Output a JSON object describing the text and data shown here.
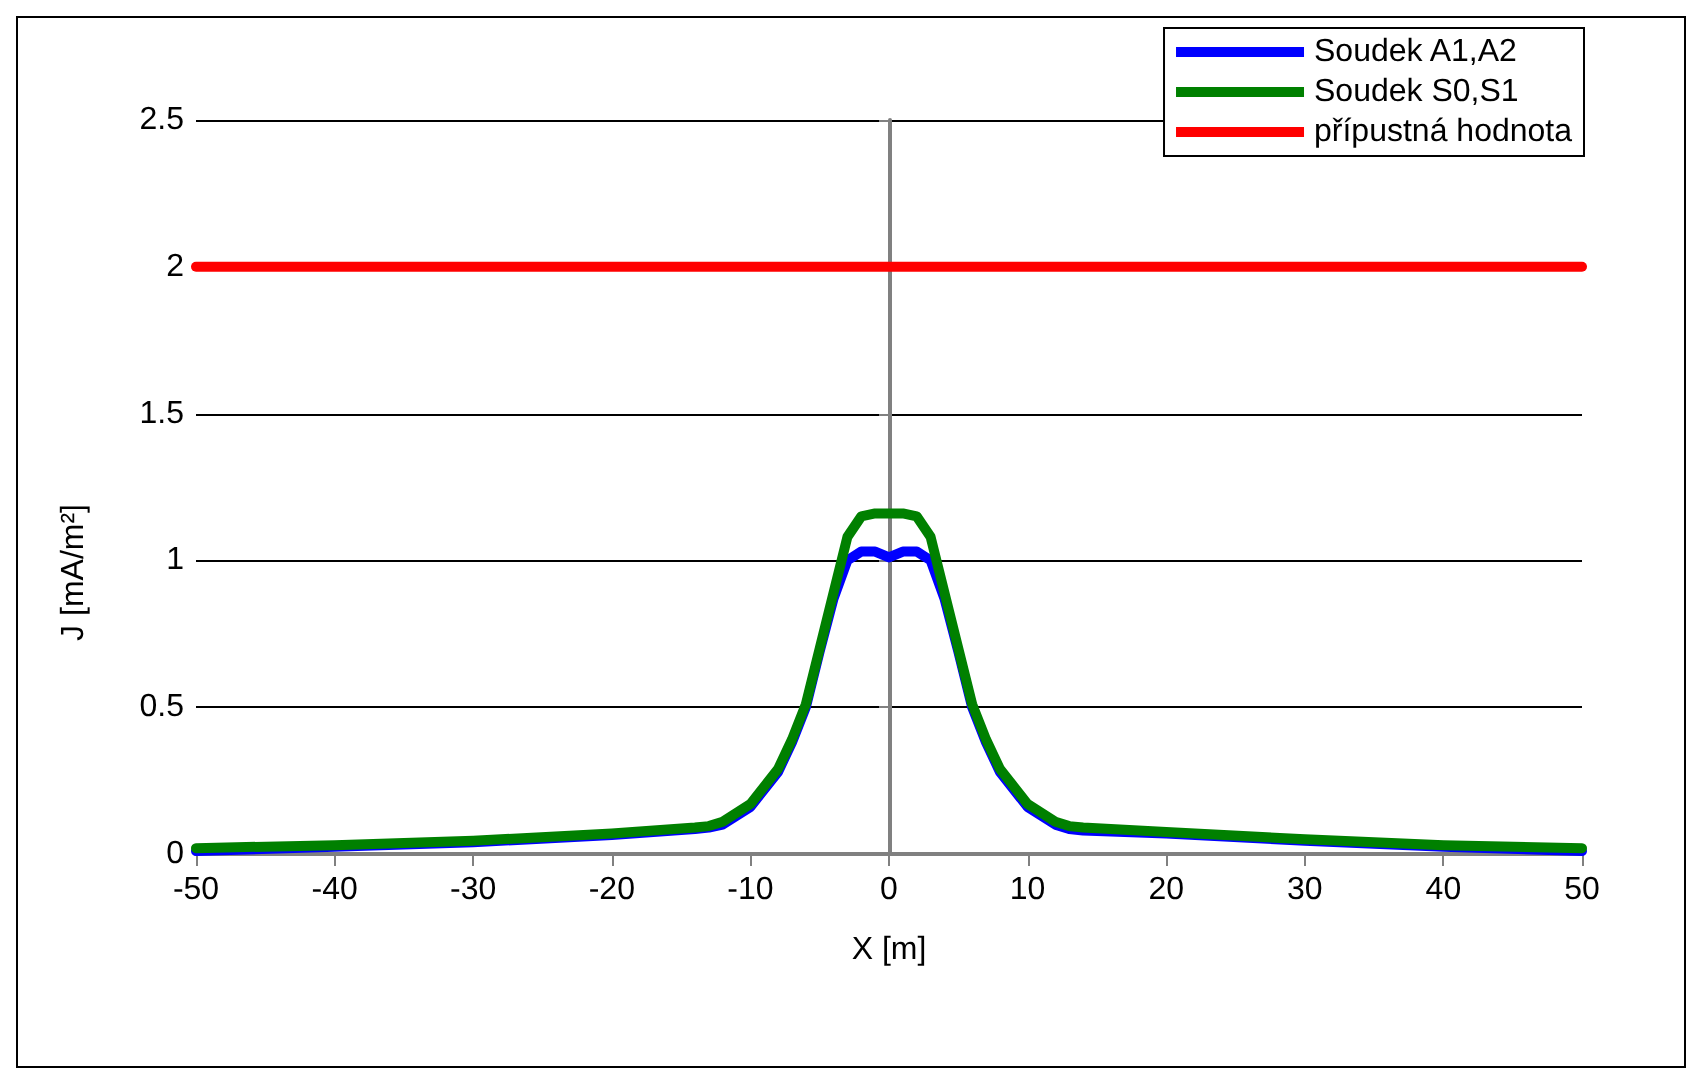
{
  "chart_data": {
    "type": "line",
    "xlabel": "X [m]",
    "ylabel": "J [mA/m²]",
    "xlim": [
      -50,
      50
    ],
    "xticks": [
      -50,
      -40,
      -30,
      -20,
      -10,
      0,
      10,
      20,
      30,
      40,
      50
    ],
    "ylim": [
      0,
      2.5
    ],
    "yticks": [
      0,
      0.5,
      1,
      1.5,
      2,
      2.5
    ],
    "grid": "y",
    "legend": "top right",
    "marker": "none",
    "line_style": "solid",
    "series": [
      {
        "name": "Soudek A1,A2",
        "color": "#0000ff",
        "x": [
          -50,
          -40,
          -30,
          -20,
          -14,
          -13,
          -12,
          -10,
          -8,
          -7,
          -6,
          -5,
          -4,
          -3,
          -2,
          -1,
          0,
          1,
          2,
          3,
          4,
          5,
          6,
          7,
          8,
          10,
          12,
          13,
          14,
          20,
          30,
          40,
          50
        ],
        "values": [
          0.01,
          0.025,
          0.04,
          0.065,
          0.085,
          0.09,
          0.1,
          0.16,
          0.28,
          0.38,
          0.5,
          0.69,
          0.87,
          1.0,
          1.03,
          1.03,
          1.01,
          1.03,
          1.03,
          1.0,
          0.87,
          0.69,
          0.5,
          0.38,
          0.28,
          0.16,
          0.1,
          0.085,
          0.08,
          0.07,
          0.045,
          0.025,
          0.01
        ]
      },
      {
        "name": "Soudek S0,S1",
        "color": "#008000",
        "x": [
          -50,
          -40,
          -30,
          -20,
          -14,
          -13,
          -12,
          -10,
          -8,
          -7,
          -6,
          -5,
          -4,
          -3,
          -2,
          -1,
          0,
          1,
          2,
          3,
          4,
          5,
          6,
          7,
          8,
          10,
          12,
          13,
          14,
          20,
          30,
          40,
          50
        ],
        "values": [
          0.02,
          0.03,
          0.045,
          0.07,
          0.09,
          0.095,
          0.11,
          0.17,
          0.29,
          0.39,
          0.51,
          0.7,
          0.89,
          1.08,
          1.15,
          1.16,
          1.16,
          1.16,
          1.15,
          1.08,
          0.89,
          0.7,
          0.51,
          0.39,
          0.29,
          0.17,
          0.11,
          0.095,
          0.09,
          0.075,
          0.05,
          0.03,
          0.02
        ]
      },
      {
        "name": "přípustná hodnota",
        "color": "#ff0000",
        "x": [
          -50,
          50
        ],
        "values": [
          2,
          2
        ]
      }
    ]
  }
}
